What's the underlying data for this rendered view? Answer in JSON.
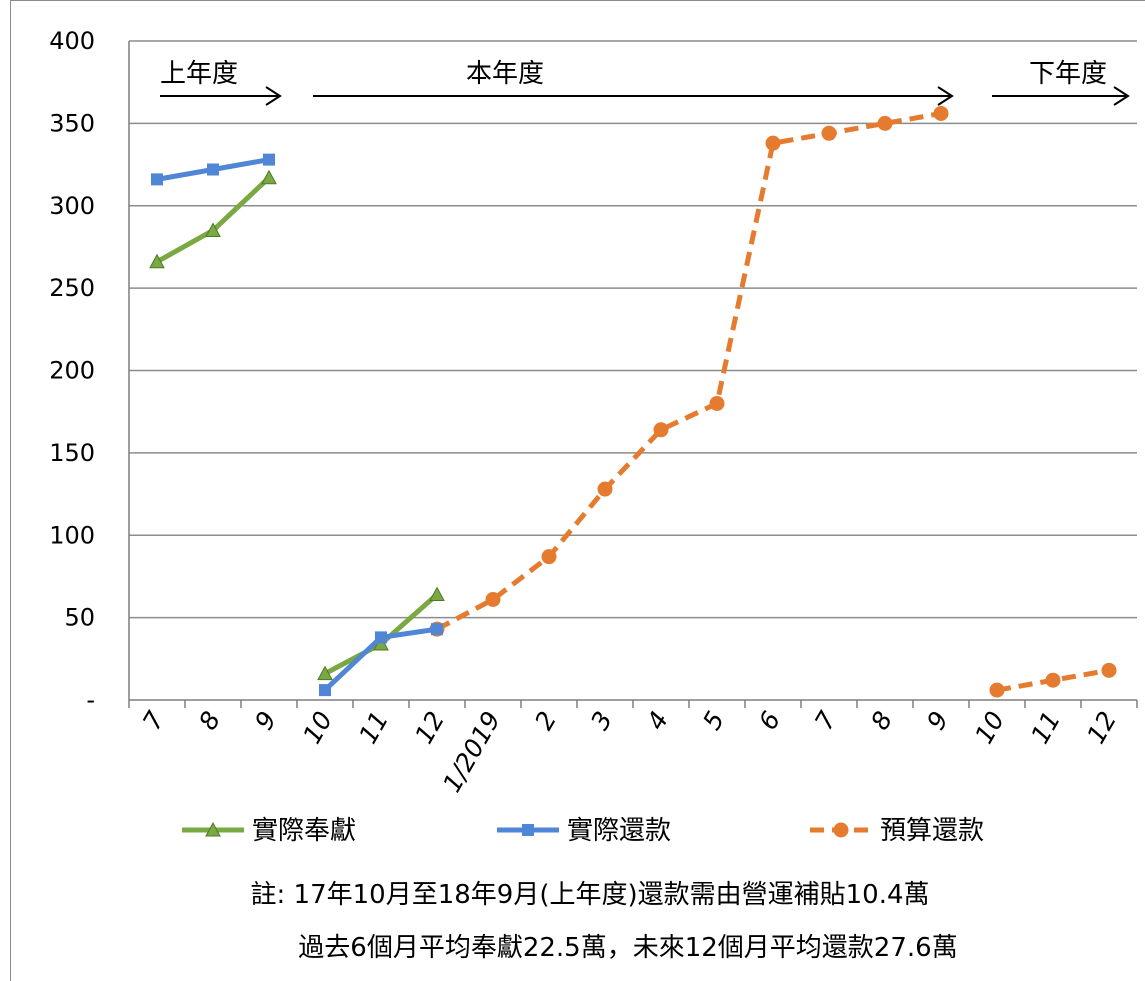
{
  "chart_data": {
    "type": "line",
    "categories": [
      "7",
      "8",
      "9",
      "10",
      "11",
      "12",
      "1/2019",
      "2",
      "3",
      "4",
      "5",
      "6",
      "7",
      "8",
      "9",
      "10",
      "11",
      "12"
    ],
    "y_ticks": [
      "-",
      "50",
      "100",
      "150",
      "200",
      "250",
      "300",
      "350",
      "400"
    ],
    "ylim": [
      0,
      400
    ],
    "grid": true,
    "periods": [
      {
        "label": "上年度",
        "from": "7",
        "to": "9"
      },
      {
        "label": "本年度",
        "from": "10",
        "to": "9"
      },
      {
        "label": "下年度",
        "from": "10",
        "to": "12"
      }
    ],
    "series": [
      {
        "name": "實際奉獻",
        "color": "#7aa843",
        "marker": "triangle",
        "dashed": false,
        "segments": [
          [
            [
              0,
              266
            ],
            [
              1,
              285
            ],
            [
              2,
              317
            ]
          ],
          [
            [
              3,
              16
            ],
            [
              4,
              34
            ],
            [
              5,
              64
            ]
          ]
        ]
      },
      {
        "name": "實際還款",
        "color": "#4f86d6",
        "marker": "square",
        "dashed": false,
        "segments": [
          [
            [
              0,
              316
            ],
            [
              1,
              322
            ],
            [
              2,
              328
            ]
          ],
          [
            [
              3,
              6
            ],
            [
              4,
              38
            ],
            [
              5,
              43
            ]
          ]
        ]
      },
      {
        "name": "預算還款",
        "color": "#e57b2f",
        "marker": "circle",
        "dashed": true,
        "segments": [
          [
            [
              5,
              43
            ],
            [
              6,
              61
            ],
            [
              7,
              87
            ],
            [
              8,
              128
            ],
            [
              9,
              164
            ],
            [
              10,
              180
            ],
            [
              11,
              338
            ],
            [
              12,
              344
            ],
            [
              13,
              350
            ],
            [
              14,
              356
            ]
          ],
          [
            [
              15,
              6
            ],
            [
              16,
              12
            ],
            [
              17,
              18
            ]
          ]
        ]
      }
    ],
    "legend_position": "bottom"
  },
  "notes": {
    "line1": "註: 17年10月至18年9月(上年度)還款需由營運補貼10.4萬",
    "line2": "過去6個月平均奉獻22.5萬，未來12個月平均還款27.6萬"
  }
}
